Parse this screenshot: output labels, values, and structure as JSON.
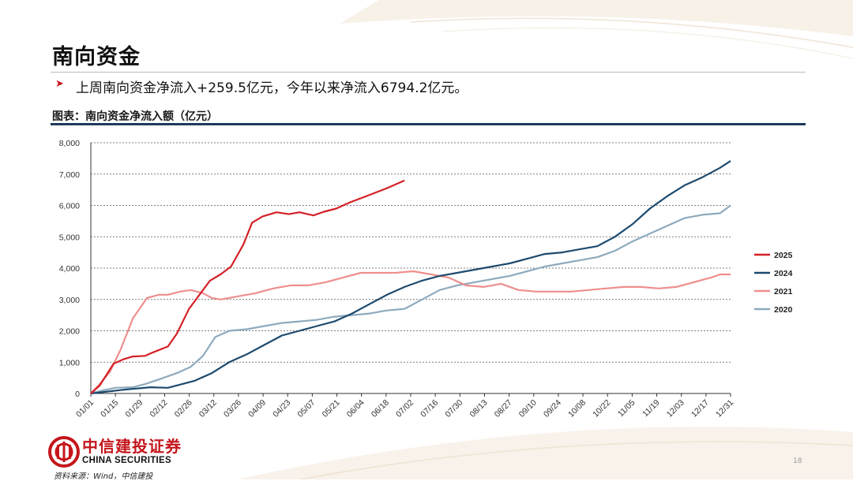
{
  "slide": {
    "title": "南向资金",
    "bullet_text": "上周南向资金净流入+259.5亿元，今年以来净流入6794.2亿元。",
    "chart_label": "图表：南向资金净流入额（亿元）",
    "source": "资料来源：Wind，中信建投",
    "page_number": "18",
    "logo_cn": "中信建投证券",
    "logo_en": "CHINA SECURITIES"
  },
  "colors": {
    "brand_red": "#c4161c",
    "navy": "#1d3b5c"
  },
  "chart_data": {
    "type": "line",
    "title": "",
    "xlabel": "",
    "ylabel": "",
    "ylim": [
      0,
      8000
    ],
    "yticks": [
      "0",
      "1,000",
      "2,000",
      "3,000",
      "4,000",
      "5,000",
      "6,000",
      "7,000",
      "8,000"
    ],
    "x_ticks": [
      "01/01",
      "01/15",
      "01/29",
      "02/12",
      "02/26",
      "03/12",
      "03/26",
      "04/09",
      "04/23",
      "05/07",
      "05/21",
      "06/04",
      "06/18",
      "07/02",
      "07/16",
      "07/30",
      "08/13",
      "08/27",
      "09/10",
      "09/24",
      "10/08",
      "10/22",
      "11/05",
      "11/19",
      "12/03",
      "12/17",
      "12/31"
    ],
    "x_unit": "day of year (1 = 01/01)",
    "grid": "horizontal dashed",
    "legend_position": "right",
    "series": [
      {
        "name": "2025",
        "color": "#d42027",
        "x": [
          1,
          6,
          10,
          14,
          20,
          25,
          32,
          36,
          45,
          50,
          57,
          65,
          69,
          75,
          81,
          88,
          93,
          99,
          107,
          114,
          120,
          128,
          134,
          141,
          149,
          156,
          163,
          170,
          176,
          180
        ],
        "y": [
          0,
          250,
          600,
          950,
          1100,
          1180,
          1200,
          1300,
          1500,
          1900,
          2700,
          3300,
          3600,
          3800,
          4050,
          4750,
          5450,
          5650,
          5780,
          5720,
          5780,
          5680,
          5800,
          5900,
          6100,
          6250,
          6400,
          6550,
          6700,
          6795
        ]
      },
      {
        "name": "2024",
        "color": "#1d4a6e",
        "x": [
          1,
          20,
          35,
          45,
          60,
          70,
          80,
          90,
          100,
          110,
          120,
          130,
          140,
          150,
          160,
          170,
          180,
          190,
          200,
          210,
          220,
          230,
          240,
          250,
          260,
          270,
          280,
          290,
          300,
          310,
          320,
          330,
          340,
          350,
          360,
          366
        ],
        "y": [
          0,
          120,
          200,
          180,
          400,
          650,
          1000,
          1250,
          1550,
          1850,
          2000,
          2150,
          2300,
          2550,
          2850,
          3150,
          3400,
          3600,
          3750,
          3850,
          3950,
          4050,
          4150,
          4300,
          4450,
          4500,
          4600,
          4700,
          5000,
          5400,
          5900,
          6300,
          6650,
          6900,
          7200,
          7420
        ]
      },
      {
        "name": "2021",
        "color": "#ee8e8e",
        "x": [
          1,
          6,
          12,
          18,
          25,
          30,
          33,
          40,
          45,
          52,
          58,
          65,
          70,
          75,
          85,
          95,
          105,
          115,
          125,
          135,
          145,
          155,
          165,
          175,
          185,
          195,
          205,
          215,
          225,
          235,
          245,
          255,
          265,
          275,
          285,
          295,
          305,
          315,
          325,
          335,
          345,
          355,
          360,
          366
        ],
        "y": [
          0,
          300,
          700,
          1400,
          2400,
          2800,
          3050,
          3150,
          3150,
          3250,
          3300,
          3200,
          3050,
          3000,
          3100,
          3200,
          3350,
          3450,
          3450,
          3550,
          3700,
          3850,
          3850,
          3850,
          3900,
          3800,
          3700,
          3450,
          3400,
          3500,
          3300,
          3250,
          3250,
          3250,
          3300,
          3350,
          3400,
          3400,
          3350,
          3400,
          3550,
          3700,
          3800,
          3800
        ]
      },
      {
        "name": "2020",
        "color": "#8eaabe",
        "x": [
          1,
          8,
          15,
          25,
          32,
          40,
          50,
          58,
          65,
          72,
          80,
          90,
          100,
          110,
          120,
          130,
          140,
          150,
          160,
          170,
          180,
          190,
          200,
          210,
          220,
          230,
          240,
          250,
          260,
          270,
          280,
          290,
          300,
          310,
          320,
          330,
          340,
          350,
          360,
          366
        ],
        "y": [
          0,
          100,
          180,
          200,
          300,
          450,
          650,
          850,
          1200,
          1800,
          2000,
          2050,
          2150,
          2250,
          2300,
          2350,
          2450,
          2500,
          2550,
          2650,
          2700,
          3000,
          3300,
          3450,
          3550,
          3650,
          3750,
          3900,
          4050,
          4150,
          4250,
          4350,
          4550,
          4850,
          5100,
          5350,
          5600,
          5700,
          5750,
          6000
        ]
      }
    ]
  }
}
